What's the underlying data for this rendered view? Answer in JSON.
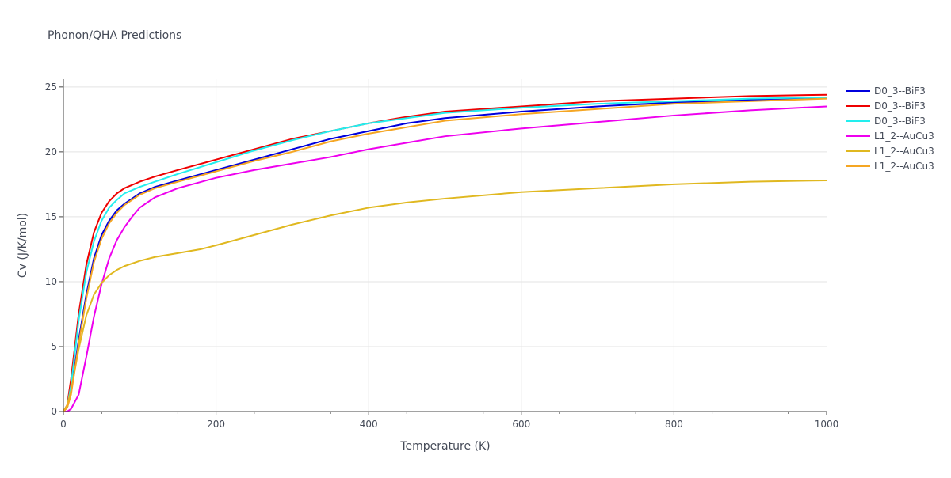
{
  "chart_data": {
    "type": "line",
    "title": "Phonon/QHA Predictions",
    "xlabel": "Temperature (K)",
    "ylabel": "Cv (J/K/mol)",
    "xlim": [
      0,
      1000
    ],
    "ylim": [
      0,
      25.6
    ],
    "xticks": [
      0,
      200,
      400,
      600,
      800,
      1000
    ],
    "yticks": [
      0,
      5,
      10,
      15,
      20,
      25
    ],
    "grid": true,
    "legend_position": "top-right",
    "series": [
      {
        "name": "D0_3--BiF3",
        "color": "#0000dd",
        "x": [
          0,
          5,
          10,
          20,
          30,
          40,
          50,
          60,
          70,
          80,
          100,
          120,
          150,
          200,
          250,
          300,
          350,
          400,
          450,
          500,
          600,
          700,
          800,
          900,
          1000
        ],
        "y": [
          0,
          0.3,
          1.5,
          5.5,
          9.0,
          11.8,
          13.6,
          14.7,
          15.5,
          16.0,
          16.8,
          17.3,
          17.8,
          18.6,
          19.4,
          20.2,
          21.0,
          21.6,
          22.2,
          22.6,
          23.1,
          23.5,
          23.8,
          24.0,
          24.2
        ]
      },
      {
        "name": "D0_3--BiF3",
        "color": "#ee0000",
        "x": [
          0,
          5,
          10,
          20,
          30,
          40,
          50,
          60,
          70,
          80,
          100,
          120,
          150,
          200,
          250,
          300,
          350,
          400,
          450,
          500,
          600,
          700,
          800,
          900,
          1000
        ],
        "y": [
          0,
          0.5,
          2.5,
          7.5,
          11.3,
          13.8,
          15.3,
          16.2,
          16.8,
          17.2,
          17.7,
          18.1,
          18.6,
          19.4,
          20.2,
          21.0,
          21.6,
          22.2,
          22.7,
          23.1,
          23.5,
          23.9,
          24.1,
          24.3,
          24.4
        ]
      },
      {
        "name": "D0_3--BiF3",
        "color": "#22eeee",
        "x": [
          0,
          5,
          10,
          20,
          30,
          40,
          50,
          60,
          70,
          80,
          100,
          120,
          150,
          200,
          250,
          300,
          350,
          400,
          450,
          500,
          600,
          700,
          800,
          900,
          1000
        ],
        "y": [
          0,
          0.4,
          2.0,
          7.0,
          10.7,
          13.1,
          14.7,
          15.7,
          16.3,
          16.8,
          17.3,
          17.7,
          18.3,
          19.2,
          20.1,
          20.9,
          21.6,
          22.2,
          22.6,
          23.0,
          23.4,
          23.7,
          23.9,
          24.1,
          24.2
        ]
      },
      {
        "name": "L1_2--AuCu3",
        "color": "#ee00ee",
        "x": [
          0,
          5,
          10,
          20,
          30,
          40,
          50,
          60,
          70,
          80,
          90,
          100,
          120,
          150,
          200,
          250,
          300,
          350,
          400,
          450,
          500,
          600,
          700,
          800,
          900,
          1000
        ],
        "y": [
          0,
          0,
          0.2,
          1.3,
          4.2,
          7.3,
          9.8,
          11.8,
          13.2,
          14.2,
          15.0,
          15.7,
          16.5,
          17.2,
          18.0,
          18.6,
          19.1,
          19.6,
          20.2,
          20.7,
          21.2,
          21.8,
          22.3,
          22.8,
          23.2,
          23.5
        ]
      },
      {
        "name": "L1_2--AuCu3",
        "color": "#e0b820",
        "x": [
          0,
          5,
          10,
          20,
          30,
          40,
          50,
          60,
          70,
          80,
          100,
          120,
          150,
          180,
          200,
          250,
          300,
          350,
          400,
          450,
          500,
          600,
          700,
          800,
          900,
          1000
        ],
        "y": [
          0,
          0.5,
          1.6,
          4.8,
          7.4,
          9.0,
          9.9,
          10.5,
          10.9,
          11.2,
          11.6,
          11.9,
          12.2,
          12.5,
          12.8,
          13.6,
          14.4,
          15.1,
          15.7,
          16.1,
          16.4,
          16.9,
          17.2,
          17.5,
          17.7,
          17.8
        ]
      },
      {
        "name": "L1_2--AuCu3",
        "color": "#f5a623",
        "x": [
          0,
          5,
          10,
          20,
          30,
          40,
          50,
          60,
          70,
          80,
          100,
          120,
          150,
          200,
          250,
          300,
          350,
          400,
          450,
          500,
          600,
          700,
          800,
          900,
          1000
        ],
        "y": [
          0,
          0.3,
          1.3,
          5.2,
          8.7,
          11.5,
          13.3,
          14.5,
          15.3,
          15.9,
          16.7,
          17.2,
          17.7,
          18.5,
          19.3,
          20.0,
          20.8,
          21.4,
          21.9,
          22.4,
          22.9,
          23.3,
          23.7,
          23.9,
          24.1
        ]
      }
    ]
  }
}
